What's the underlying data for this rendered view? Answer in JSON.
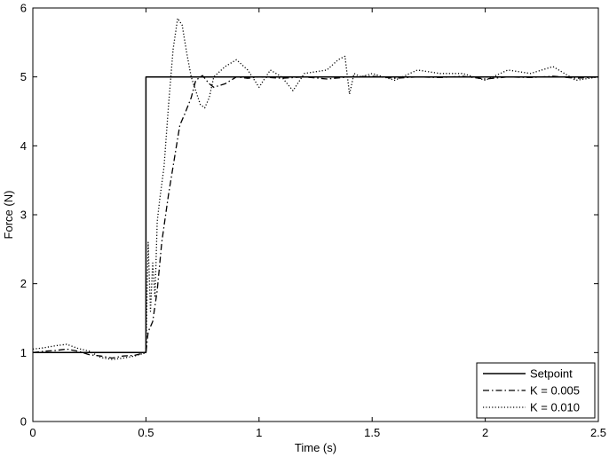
{
  "chart_data": {
    "type": "line",
    "title": "",
    "xlabel": "Time (s)",
    "ylabel": "Force (N)",
    "xlim": [
      0,
      2.5
    ],
    "ylim": [
      0,
      6
    ],
    "xticks": [
      "0",
      "0.5",
      "1",
      "1.5",
      "2",
      "2.5"
    ],
    "yticks": [
      "0",
      "1",
      "2",
      "3",
      "4",
      "5",
      "6"
    ],
    "grid": false,
    "legend_position": "bottom-right",
    "series": [
      {
        "name": "Setpoint",
        "style": "solid",
        "x": [
          0,
          0.49,
          0.49,
          0.5,
          0.5,
          2.5
        ],
        "y": [
          1,
          1,
          1,
          1,
          5,
          5
        ]
      },
      {
        "name": "K = 0.005",
        "style": "dashdot",
        "x": [
          0,
          0.05,
          0.1,
          0.15,
          0.2,
          0.25,
          0.3,
          0.35,
          0.4,
          0.45,
          0.5,
          0.51,
          0.53,
          0.55,
          0.57,
          0.6,
          0.63,
          0.65,
          0.67,
          0.7,
          0.72,
          0.75,
          0.78,
          0.8,
          0.85,
          0.9,
          0.95,
          1.0,
          1.1,
          1.2,
          1.3,
          1.4,
          1.5,
          1.6,
          1.7,
          1.8,
          1.9,
          2.0,
          2.1,
          2.2,
          2.3,
          2.4,
          2.5
        ],
        "y": [
          1.0,
          1.02,
          1.03,
          1.05,
          1.02,
          0.97,
          0.95,
          0.92,
          0.95,
          0.96,
          1.0,
          1.3,
          1.45,
          1.9,
          2.6,
          3.3,
          3.9,
          4.3,
          4.45,
          4.7,
          4.95,
          5.02,
          4.9,
          4.85,
          4.9,
          5.0,
          4.98,
          5.0,
          4.98,
          5.0,
          4.97,
          5.0,
          5.01,
          4.98,
          5.0,
          4.99,
          5.01,
          4.97,
          5.0,
          4.99,
          5.01,
          4.98,
          5.0
        ]
      },
      {
        "name": "K = 0.010",
        "style": "dotted",
        "x": [
          0,
          0.05,
          0.1,
          0.15,
          0.2,
          0.25,
          0.3,
          0.35,
          0.4,
          0.45,
          0.5,
          0.51,
          0.52,
          0.53,
          0.54,
          0.55,
          0.56,
          0.58,
          0.6,
          0.62,
          0.64,
          0.66,
          0.68,
          0.7,
          0.72,
          0.74,
          0.76,
          0.78,
          0.8,
          0.85,
          0.9,
          0.95,
          1.0,
          1.05,
          1.1,
          1.15,
          1.2,
          1.3,
          1.35,
          1.38,
          1.4,
          1.42,
          1.45,
          1.5,
          1.6,
          1.7,
          1.8,
          1.9,
          2.0,
          2.1,
          2.2,
          2.3,
          2.4,
          2.5
        ],
        "y": [
          1.05,
          1.07,
          1.1,
          1.12,
          1.06,
          1.02,
          0.93,
          0.9,
          0.92,
          0.95,
          1.0,
          2.6,
          1.6,
          2.3,
          1.8,
          2.9,
          3.2,
          3.7,
          4.6,
          5.4,
          5.85,
          5.75,
          5.35,
          5.0,
          4.8,
          4.6,
          4.55,
          4.7,
          5.0,
          5.15,
          5.25,
          5.1,
          4.85,
          5.1,
          5.0,
          4.8,
          5.05,
          5.1,
          5.25,
          5.3,
          4.75,
          5.05,
          5.0,
          5.05,
          4.95,
          5.1,
          5.05,
          5.05,
          4.95,
          5.1,
          5.05,
          5.15,
          4.95,
          5.0
        ]
      }
    ]
  }
}
